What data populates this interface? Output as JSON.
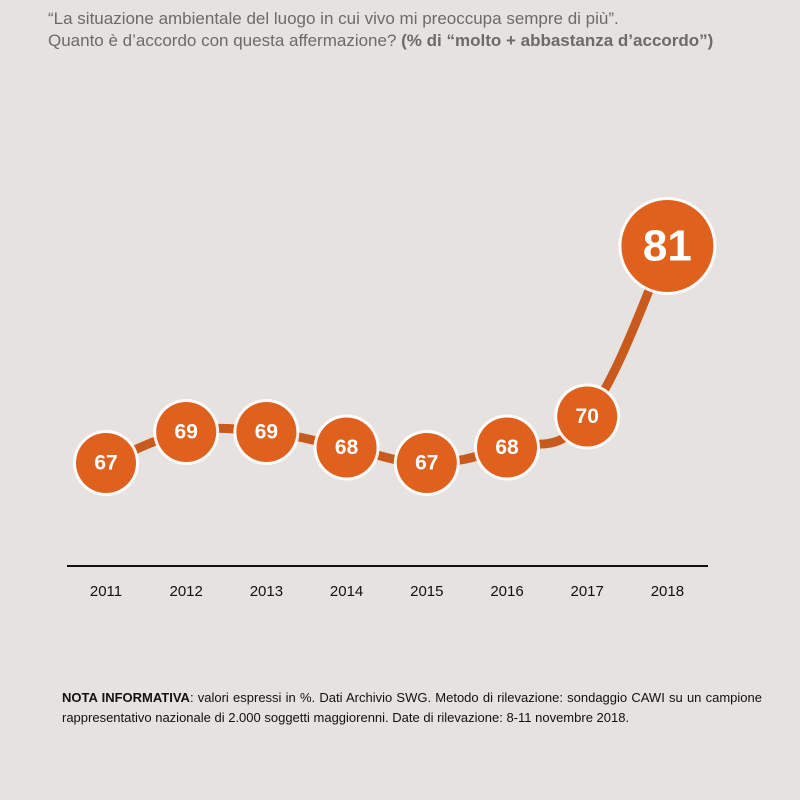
{
  "title": {
    "line1": "“La situazione ambientale del luogo in cui vivo mi preoccupa sempre di più”.",
    "line2_plain": "Quanto è d’accordo con questa affermazione? ",
    "line2_bold": "(% di “molto + abbastanza d’accordo”)"
  },
  "chart_data": {
    "type": "line",
    "categories": [
      "2011",
      "2012",
      "2013",
      "2014",
      "2015",
      "2016",
      "2017",
      "2018"
    ],
    "values": [
      67,
      69,
      69,
      68,
      67,
      68,
      70,
      81
    ],
    "line_color": "#c85a1e",
    "marker_color": "#e0611e",
    "marker_text_color": "#ffffff",
    "highlight_last": true
  },
  "note": {
    "label": "NOTA INFORMATIVA",
    "text": ": valori espressi in %. Dati Archivio SWG. Metodo di rilevazione: sondaggio CAWI su un campione rappresentativo nazionale di 2.000 soggetti maggiorenni. Date di rilevazione: 8-11 novembre 2018."
  }
}
